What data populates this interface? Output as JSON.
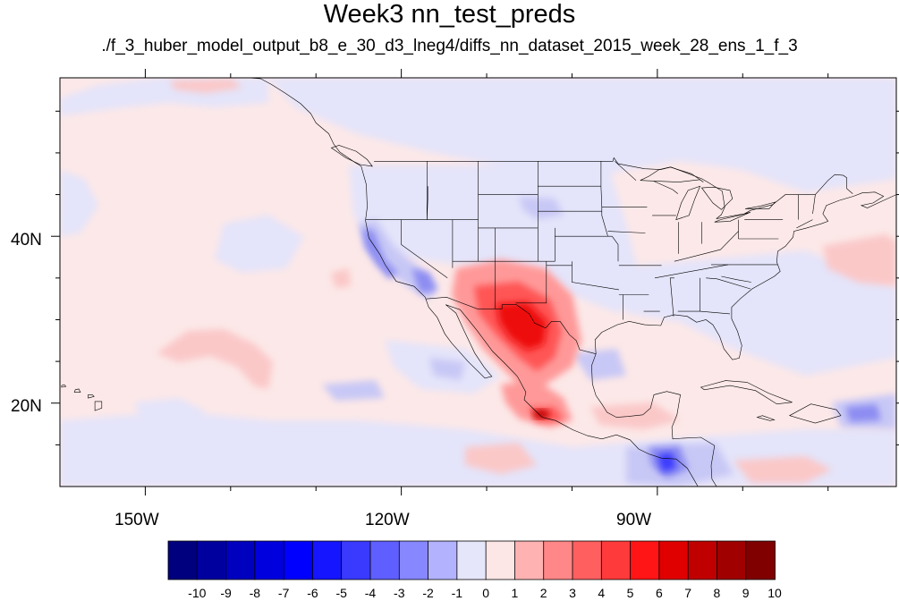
{
  "title": "Week3 nn_test_preds",
  "subtitle": "./f_3_huber_model_output_b8_e_30_d3_lneg4/diffs_nn_dataset_2015_week_28_ens_1_f_3",
  "map": {
    "lon_range": [
      -160,
      -62
    ],
    "lat_range": [
      10,
      59
    ],
    "x_tick_labels": [
      "150W",
      "120W",
      "90W"
    ],
    "y_tick_labels": [
      "40N",
      "20N"
    ],
    "background_color": "#fce8e8"
  },
  "colorbar": {
    "labels": [
      "-10",
      "-9",
      "-8",
      "-7",
      "-6",
      "-5",
      "-4",
      "-3",
      "-2",
      "-1",
      "0",
      "1",
      "2",
      "3",
      "4",
      "5",
      "6",
      "7",
      "8",
      "9",
      "10"
    ],
    "colors": [
      "#00007f",
      "#00009f",
      "#0000bf",
      "#0000df",
      "#0000ff",
      "#1515ff",
      "#3a3aff",
      "#5f5fff",
      "#8787ff",
      "#b2b2ff",
      "#e6e6fa",
      "#fde6e6",
      "#ffb2b2",
      "#ff8787",
      "#ff5f5f",
      "#ff3a3a",
      "#ff1515",
      "#e00000",
      "#c00000",
      "#a00000",
      "#800000"
    ]
  }
}
